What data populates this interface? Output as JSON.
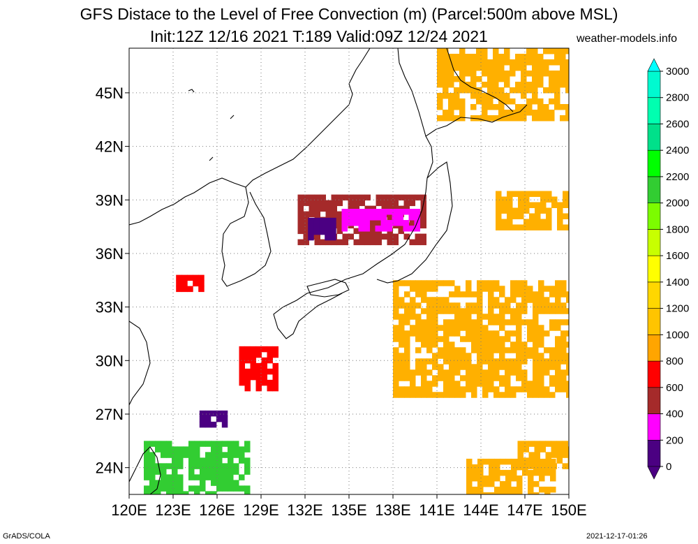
{
  "title": {
    "line1": "GFS Distace to the Level of Free Convection (m) (Parcel:500m above MSL)",
    "line2": "Init:12Z 12/16 2021 T:189 Valid:09Z 12/24 2021",
    "site": "weather-models.info"
  },
  "footer": {
    "left": "GrADS/COLA",
    "right": "2021-12-17-01:26"
  },
  "map": {
    "lon_range": [
      120,
      150
    ],
    "lat_range": [
      22.5,
      47.5
    ],
    "lon_ticks": [
      {
        "v": 120,
        "label": "120E"
      },
      {
        "v": 123,
        "label": "123E"
      },
      {
        "v": 126,
        "label": "126E"
      },
      {
        "v": 129,
        "label": "129E"
      },
      {
        "v": 132,
        "label": "132E"
      },
      {
        "v": 135,
        "label": "135E"
      },
      {
        "v": 138,
        "label": "138E"
      },
      {
        "v": 141,
        "label": "141E"
      },
      {
        "v": 144,
        "label": "144E"
      },
      {
        "v": 147,
        "label": "147E"
      },
      {
        "v": 150,
        "label": "150E"
      }
    ],
    "lat_ticks": [
      {
        "v": 24,
        "label": "24N"
      },
      {
        "v": 27,
        "label": "27N"
      },
      {
        "v": 30,
        "label": "30N"
      },
      {
        "v": 33,
        "label": "33N"
      },
      {
        "v": 36,
        "label": "36N"
      },
      {
        "v": 39,
        "label": "39N"
      },
      {
        "v": 42,
        "label": "42N"
      },
      {
        "v": 45,
        "label": "45N"
      }
    ],
    "grid": true,
    "grid_style": "dotted"
  },
  "colorbar": {
    "labels": [
      "0",
      "200",
      "400",
      "600",
      "800",
      "1000",
      "1200",
      "1400",
      "1600",
      "1800",
      "2000",
      "2200",
      "2400",
      "2600",
      "2800",
      "3000"
    ],
    "colors": [
      "#4b0082",
      "#ff00ff",
      "#a52a2a",
      "#ff0000",
      "#ffa500",
      "#ffc400",
      "#ffd700",
      "#ffff00",
      "#c8ff00",
      "#7cfc00",
      "#32cd32",
      "#00ff00",
      "#00e08a",
      "#00ffb0",
      "#00fad0",
      "#00ffff"
    ]
  },
  "fields": [
    {
      "name": "sea-of-japan-cluster",
      "color": "#a52a2a",
      "lon": [
        131.5,
        140
      ],
      "lat": [
        36.5,
        39.3
      ]
    },
    {
      "name": "sea-of-japan-magenta",
      "color": "#ff00ff",
      "lon": [
        134.5,
        139.5
      ],
      "lat": [
        37.5,
        38.5
      ]
    },
    {
      "name": "sea-of-japan-purple",
      "color": "#4b0082",
      "lon": [
        132.2,
        133.8
      ],
      "lat": [
        36.8,
        38.0
      ]
    },
    {
      "name": "pacific-orange-band",
      "color": "#ffb000",
      "lon": [
        138,
        150
      ],
      "lat": [
        28,
        34.5
      ]
    },
    {
      "name": "east-orange",
      "color": "#ffb000",
      "lon": [
        145,
        150
      ],
      "lat": [
        37.5,
        39.5
      ]
    },
    {
      "name": "kuril-orange",
      "color": "#ffb000",
      "lon": [
        141,
        150
      ],
      "lat": [
        43.5,
        47.5
      ]
    },
    {
      "name": "kyushu-red",
      "color": "#ff0000",
      "lon": [
        127.5,
        130
      ],
      "lat": [
        28.5,
        30.8
      ]
    },
    {
      "name": "korea-west-red",
      "color": "#ff0000",
      "lon": [
        123.2,
        125
      ],
      "lat": [
        33.9,
        34.8
      ]
    },
    {
      "name": "ryukyu-purple",
      "color": "#4b0082",
      "lon": [
        124.8,
        126.5
      ],
      "lat": [
        26.3,
        27.2
      ]
    },
    {
      "name": "taiwan-green",
      "color": "#32cd32",
      "lon": [
        121,
        128
      ],
      "lat": [
        22.5,
        25.5
      ]
    },
    {
      "name": "south-orange",
      "color": "#ffb000",
      "lon": [
        143,
        149
      ],
      "lat": [
        22.5,
        24.5
      ]
    },
    {
      "name": "south-east-orange",
      "color": "#ffb000",
      "lon": [
        146.5,
        150
      ],
      "lat": [
        24,
        25.5
      ]
    }
  ]
}
